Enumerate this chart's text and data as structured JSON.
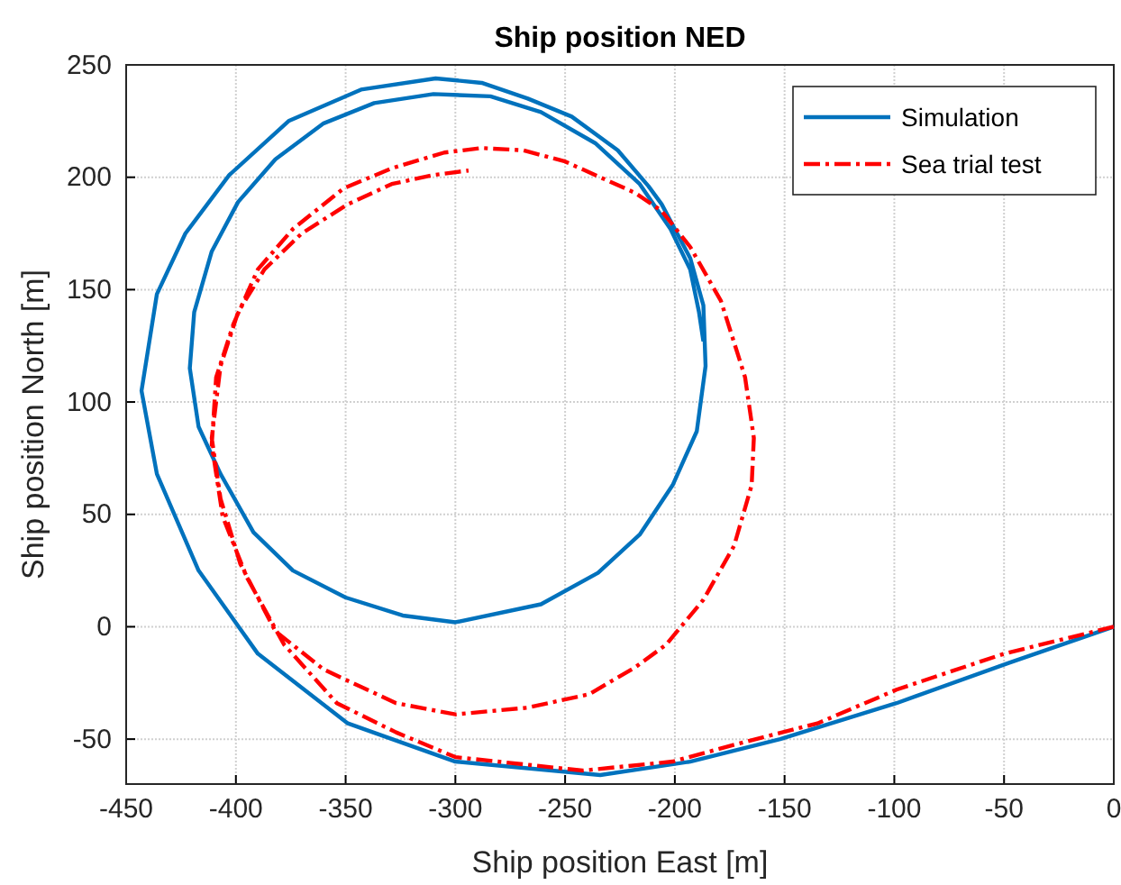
{
  "chart_data": {
    "type": "line",
    "title": "Ship position NED",
    "xlabel": "Ship position East [m]",
    "ylabel": "Ship position North [m]",
    "xlim": [
      -450,
      0
    ],
    "ylim": [
      -70,
      250
    ],
    "xticks": [
      -450,
      -400,
      -350,
      -300,
      -250,
      -200,
      -150,
      -100,
      -50,
      0
    ],
    "yticks": [
      -50,
      0,
      50,
      100,
      150,
      200,
      250
    ],
    "grid": true,
    "legend": "top right",
    "marker": "none",
    "series": [
      {
        "name": "Simulation",
        "color": "#0072bd",
        "line_style": "solid",
        "x": [
          0,
          -47.6,
          -99,
          -152,
          -193,
          -234,
          -300,
          -349,
          -390,
          -417,
          -436,
          -443,
          -436,
          -423,
          -403,
          -376,
          -343,
          -309,
          -288,
          -267,
          -247,
          -226,
          -212,
          -206,
          -193,
          -187,
          -186,
          -190,
          -201,
          -216,
          -235,
          -261,
          -300,
          -324,
          -350,
          -374,
          -392,
          -407,
          -417,
          -421,
          -419,
          -411,
          -399,
          -382,
          -360,
          -337,
          -310,
          -284,
          -261,
          -236,
          -216,
          -202,
          -193,
          -189,
          -187
        ],
        "values": [
          0,
          -16,
          -34,
          -50,
          -60,
          -66,
          -60,
          -43,
          -12,
          25,
          68,
          105,
          148,
          175,
          201,
          225,
          239,
          244,
          242,
          235,
          227,
          212,
          196,
          188,
          164,
          143,
          116,
          87,
          63,
          41,
          24,
          10,
          2,
          5,
          13,
          25,
          42,
          68,
          89,
          115,
          140,
          167,
          189,
          208,
          224,
          233,
          237,
          236,
          229,
          215,
          197,
          177,
          159,
          140,
          127
        ]
      },
      {
        "name": "Sea trial test",
        "color": "#ff0000",
        "line_style": "dashed",
        "x": [
          0,
          -50,
          -99,
          -135,
          -171,
          -201,
          -242,
          -300,
          -327,
          -354,
          -378,
          -395,
          -406,
          -411,
          -409,
          -401,
          -390,
          -374,
          -351,
          -329,
          -305,
          -288,
          -269,
          -250,
          -218,
          -206,
          -193,
          -179,
          -168,
          -164,
          -165,
          -173,
          -187,
          -204,
          -218,
          -239,
          -267,
          -300,
          -327,
          -360,
          -382,
          -398,
          -407,
          -411,
          -407,
          -399,
          -387,
          -370,
          -349,
          -329,
          -310,
          -294
        ],
        "values": [
          0,
          -12,
          -28,
          -43,
          -52,
          -60,
          -64,
          -58,
          -47,
          -34,
          -8,
          22,
          49,
          81,
          111,
          135,
          159,
          177,
          195,
          204,
          211,
          213,
          212,
          207,
          193,
          185,
          169,
          145,
          111,
          84,
          63,
          36,
          12,
          -8,
          -18,
          -30,
          -36,
          -39,
          -34,
          -19,
          -2,
          28,
          57,
          84,
          116,
          140,
          159,
          175,
          188,
          197,
          201,
          203
        ]
      }
    ]
  }
}
